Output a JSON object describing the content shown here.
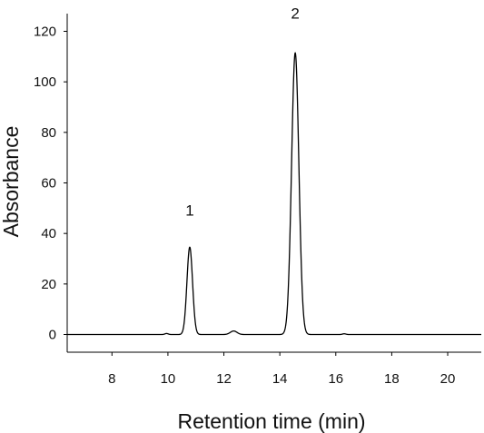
{
  "chart_data": {
    "type": "line",
    "title": "",
    "xlabel": "Retention time (min)",
    "ylabel": "Absorbance",
    "xlim": [
      6.4,
      21.2
    ],
    "ylim": [
      -7,
      127
    ],
    "x_ticks": [
      8,
      10,
      12,
      14,
      16,
      18,
      20
    ],
    "y_ticks": [
      0,
      20,
      40,
      60,
      80,
      100,
      120
    ],
    "grid": false,
    "legend": "none",
    "colors": {
      "trace": "#000000",
      "axis": "#000000"
    },
    "baseline": 0,
    "series": [
      {
        "peaks": [
          {
            "x": 9.95,
            "height": 0.4,
            "width": 0.06
          },
          {
            "x": 10.78,
            "height": 34.6,
            "width": 0.1
          },
          {
            "x": 12.35,
            "height": 1.4,
            "width": 0.12
          },
          {
            "x": 14.55,
            "height": 111.5,
            "width": 0.13
          },
          {
            "x": 16.3,
            "height": 0.3,
            "width": 0.06
          }
        ]
      }
    ],
    "annotations": [
      {
        "text": "1",
        "x": 10.78,
        "y": 47
      },
      {
        "text": "2",
        "x": 14.55,
        "y": 125
      }
    ]
  }
}
